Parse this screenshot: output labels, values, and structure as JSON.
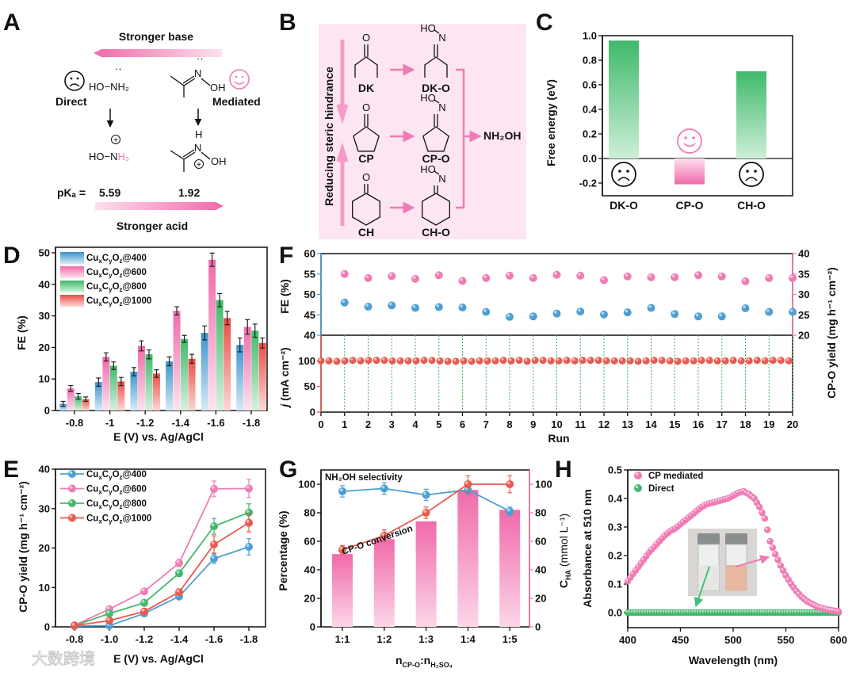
{
  "panel_labels": {
    "a": "A",
    "b": "B",
    "c": "C",
    "d": "D",
    "e": "E",
    "f": "F",
    "g": "G",
    "h": "H"
  },
  "panel_a": {
    "stronger_base": "Stronger base",
    "stronger_acid": "Stronger acid",
    "direct": "Direct",
    "mediated": "Mediated",
    "hydroxylamine": "HO−NH₂",
    "hydroxylammonium_a": "HO−N",
    "hydroxylammonium_b": "H₃",
    "oxime_n": "N",
    "oxime_oh": "OH",
    "oxime_h": "H",
    "plus": "+",
    "lone_pair": "··",
    "pka_label": "pKₐ =",
    "pka_direct": "5.59",
    "pka_mediated": "1.92"
  },
  "panel_b": {
    "steric_label": "Reducing steric hindrance",
    "ketones": [
      "DK",
      "CP",
      "CH"
    ],
    "oximes": [
      "DK-O",
      "CP-O",
      "CH-O"
    ],
    "oxygen": "O",
    "ho": "HO",
    "n": "N",
    "product": "NH₂OH"
  },
  "colors": {
    "blue": "#4d9fd3",
    "pink": "#f07bb5",
    "green": "#45b86c",
    "red": "#e85a4f",
    "box_pink": "#fde6f1"
  },
  "watermark": "大数跨境",
  "chart_data": [
    {
      "id": "C",
      "type": "bar",
      "categories": [
        "DK-O",
        "CP-O",
        "CH-O"
      ],
      "values": [
        0.96,
        -0.21,
        0.71
      ],
      "ylabel": "Free energy (eV)",
      "ylim": [
        -0.3,
        1.0
      ],
      "yticks": [
        -0.2,
        0.0,
        0.2,
        0.4,
        0.6,
        0.8,
        1.0
      ],
      "annotations": [
        "sad-face",
        "happy-face",
        "sad-face"
      ]
    },
    {
      "id": "D",
      "type": "bar",
      "categories": [
        "-0.8",
        "-1",
        "-1.2",
        "-1.4",
        "-1.6",
        "-1.8"
      ],
      "xlabel": "E (V) vs. Ag/AgCl",
      "ylabel": "FE (%)",
      "ylim": [
        0,
        50
      ],
      "yticks": [
        0,
        10,
        20,
        30,
        40,
        50
      ],
      "legend_position": "top-left",
      "series": [
        {
          "name": "CuxCyOz@400",
          "values": [
            2.1,
            9.0,
            12.3,
            15.6,
            24.6,
            20.8
          ],
          "errors": [
            0.8,
            1.3,
            1.3,
            1.4,
            2.2,
            2.2
          ]
        },
        {
          "name": "CuxCyOz@600",
          "values": [
            7.0,
            17.0,
            20.5,
            31.6,
            47.8,
            26.5
          ],
          "errors": [
            0.9,
            1.3,
            1.6,
            1.3,
            2.1,
            2.3
          ]
        },
        {
          "name": "CuxCyOz@800",
          "values": [
            4.5,
            14.2,
            17.8,
            22.7,
            35.0,
            25.3
          ],
          "errors": [
            0.9,
            1.2,
            1.4,
            1.1,
            2.1,
            2.1
          ]
        },
        {
          "name": "CuxCyOz@1000",
          "values": [
            3.6,
            9.2,
            11.7,
            16.4,
            29.3,
            21.4
          ],
          "errors": [
            0.7,
            1.3,
            1.2,
            1.4,
            2.1,
            1.6
          ]
        }
      ]
    },
    {
      "id": "E",
      "type": "line",
      "categories": [
        "-0.8",
        "-1.0",
        "-1.2",
        "-1.4",
        "-1.6",
        "-1.8"
      ],
      "xlabel": "E (V) vs. Ag/AgCl",
      "ylabel": "CP-O yield (mg h⁻¹ cm⁻²)",
      "ylim": [
        0,
        40
      ],
      "yticks": [
        0,
        10,
        20,
        30,
        40
      ],
      "legend_position": "top-left",
      "series": [
        {
          "name": "CuxCyOz@400",
          "values": [
            0.2,
            0.3,
            3.4,
            7.7,
            17.3,
            20.3
          ],
          "errors": [
            0.2,
            0.3,
            0.4,
            0.6,
            1.2,
            2.1
          ]
        },
        {
          "name": "CuxCyOz@600",
          "values": [
            0.4,
            4.5,
            9.0,
            16.2,
            35.0,
            35.1
          ],
          "errors": [
            0.2,
            0.4,
            0.5,
            0.9,
            2.0,
            2.3
          ]
        },
        {
          "name": "CuxCyOz@800",
          "values": [
            0.3,
            3.4,
            6.1,
            13.6,
            25.5,
            29.0
          ],
          "errors": [
            0.2,
            0.4,
            0.5,
            0.8,
            2.0,
            2.2
          ]
        },
        {
          "name": "CuxCyOz@1000",
          "values": [
            0.3,
            1.6,
            3.9,
            8.8,
            20.9,
            26.4
          ],
          "errors": [
            0.2,
            0.3,
            0.4,
            0.8,
            2.2,
            2.3
          ]
        }
      ]
    },
    {
      "id": "F",
      "type": "scatter",
      "xlabel": "Run",
      "xlim": [
        0,
        20
      ],
      "xticks": [
        0,
        1,
        2,
        3,
        4,
        5,
        6,
        7,
        8,
        9,
        10,
        11,
        12,
        13,
        14,
        15,
        16,
        17,
        18,
        19,
        20
      ],
      "top_left_ylabel": "FE (%)",
      "top_left_ylim": [
        40,
        60
      ],
      "top_left_yticks": [
        40,
        45,
        50,
        55,
        60
      ],
      "top_right_ylabel": "CP-O yield (mg h⁻¹ cm⁻²)",
      "top_right_ylim": [
        20,
        40
      ],
      "top_right_yticks": [
        20,
        25,
        30,
        35,
        40
      ],
      "bottom_ylabel_j": "j",
      "bottom_ylabel_unit": " (mA cm⁻²)",
      "bottom_ylim": [
        0,
        150
      ],
      "bottom_yticks": [
        0,
        50,
        100
      ],
      "runs": [
        1,
        2,
        3,
        4,
        5,
        6,
        7,
        8,
        9,
        10,
        11,
        12,
        13,
        14,
        15,
        16,
        17,
        18,
        19,
        20
      ],
      "fe": [
        48.0,
        47.0,
        47.3,
        46.7,
        46.9,
        46.8,
        45.7,
        44.5,
        44.6,
        45.3,
        45.8,
        45.1,
        45.6,
        46.7,
        45.2,
        44.6,
        44.6,
        46.6,
        45.7,
        45.7
      ],
      "yield": [
        35.0,
        34.0,
        34.5,
        33.8,
        34.7,
        33.3,
        34.0,
        34.6,
        34.0,
        34.8,
        34.6,
        33.5,
        34.4,
        34.2,
        34.2,
        34.7,
        34.4,
        33.2,
        34.0,
        34.0
      ],
      "current_density": [
        100,
        100,
        99,
        100,
        101,
        100,
        101,
        101,
        101,
        100,
        100,
        100,
        100,
        101,
        101,
        100,
        99,
        99,
        100,
        99,
        100,
        100,
        100,
        101,
        100,
        101,
        99,
        101,
        101,
        100,
        100,
        101,
        100,
        101,
        101,
        101,
        100,
        100,
        100,
        100,
        99,
        100,
        101,
        101,
        100,
        99,
        100,
        100,
        101,
        101,
        100,
        100,
        101,
        100,
        100,
        101,
        100,
        101,
        101,
        100
      ]
    },
    {
      "id": "G",
      "type": "bar",
      "categories": [
        "1:1",
        "1:2",
        "1:3",
        "1:4",
        "1:5"
      ],
      "xlabel_n": "n",
      "xlabel_sub1": "CP-O",
      "xlabel_colon": ":n",
      "xlabel_sub2": "H₂SO₄",
      "ylabel": "Percentage (%)",
      "ylim": [
        0,
        110
      ],
      "yticks": [
        0,
        20,
        40,
        60,
        80,
        100
      ],
      "right_ylabel_c": "C",
      "right_ylabel_sub": "HA",
      "right_ylabel_unit": " (mmol L⁻¹)",
      "right_yticks": [
        0,
        20,
        40,
        60,
        80,
        100
      ],
      "bars": [
        51,
        61.5,
        74,
        96,
        82
      ],
      "series": [
        {
          "name": "NH₂OH selectivity",
          "values": [
            95,
            97,
            92.5,
            96,
            81
          ],
          "errors": [
            4,
            4,
            4,
            3,
            3
          ]
        },
        {
          "name": "CP-O conversion",
          "values": [
            54,
            64,
            80,
            100,
            100
          ],
          "errors": [
            3,
            4,
            4,
            6,
            6
          ]
        }
      ]
    },
    {
      "id": "H",
      "type": "scatter",
      "xlabel": "Wavelength (nm)",
      "ylabel": "Absorbance at 510 nm",
      "xlim": [
        400,
        600
      ],
      "xticks": [
        400,
        450,
        500,
        550,
        600
      ],
      "ylim": [
        -0.05,
        0.5
      ],
      "yticks": [
        0.0,
        0.1,
        0.2,
        0.3,
        0.4,
        0.5
      ],
      "legend_position": "top-left",
      "wavelengths": [
        400,
        405,
        410,
        415,
        420,
        425,
        430,
        435,
        440,
        445,
        450,
        455,
        460,
        465,
        470,
        475,
        480,
        485,
        490,
        495,
        500,
        505,
        510,
        515,
        520,
        525,
        530,
        535,
        540,
        545,
        550,
        555,
        560,
        565,
        570,
        575,
        580,
        585,
        590,
        595,
        600
      ],
      "series": [
        {
          "name": "CP mediated",
          "values": [
            0.11,
            0.135,
            0.16,
            0.185,
            0.21,
            0.23,
            0.25,
            0.27,
            0.285,
            0.295,
            0.31,
            0.325,
            0.34,
            0.355,
            0.37,
            0.38,
            0.385,
            0.39,
            0.395,
            0.4,
            0.41,
            0.42,
            0.425,
            0.415,
            0.4,
            0.37,
            0.33,
            0.25,
            0.205,
            0.165,
            0.13,
            0.1,
            0.075,
            0.055,
            0.04,
            0.03,
            0.02,
            0.015,
            0.01,
            0.007,
            0.004
          ]
        },
        {
          "name": "Direct",
          "values": [
            0,
            0,
            0,
            0,
            0,
            0,
            0,
            0,
            0,
            0,
            0,
            0,
            0,
            0,
            0,
            0,
            0,
            0,
            0,
            0,
            0,
            0,
            0,
            0,
            0,
            0,
            0,
            0,
            0,
            0,
            0,
            0,
            0,
            0,
            0,
            0,
            0,
            0,
            0,
            0,
            0
          ]
        }
      ]
    }
  ]
}
